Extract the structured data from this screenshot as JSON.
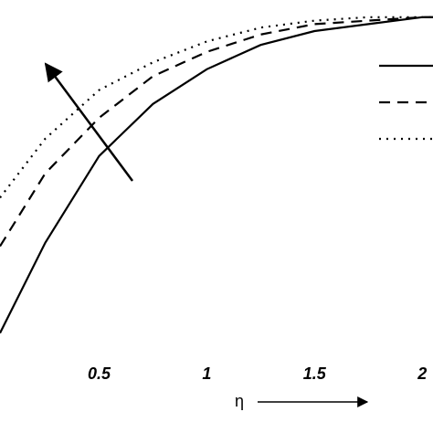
{
  "chart_data": {
    "type": "line",
    "x_label": "η",
    "x": [
      0.04,
      0.25,
      0.5,
      0.75,
      1,
      1.25,
      1.5,
      1.75,
      2,
      2.05
    ],
    "series": [
      {
        "color": "#000000",
        "dash": "solid",
        "values": [
          0.08,
          0.34,
          0.59,
          0.74,
          0.84,
          0.91,
          0.95,
          0.97,
          0.99,
          0.99
        ]
      },
      {
        "color": "#000000",
        "dash": "dashed",
        "values": [
          0.33,
          0.54,
          0.7,
          0.82,
          0.89,
          0.94,
          0.97,
          0.98,
          0.99,
          0.99
        ]
      },
      {
        "color": "#000000",
        "dash": "dotted",
        "values": [
          0.47,
          0.64,
          0.78,
          0.86,
          0.92,
          0.96,
          0.98,
          0.99,
          0.99,
          0.99
        ]
      }
    ],
    "xlim": [
      0.04,
      2.05
    ],
    "xticks": [
      0.5,
      1,
      1.5,
      2
    ],
    "ylim": [
      0,
      1
    ],
    "grid": false,
    "legend": "upper right"
  }
}
